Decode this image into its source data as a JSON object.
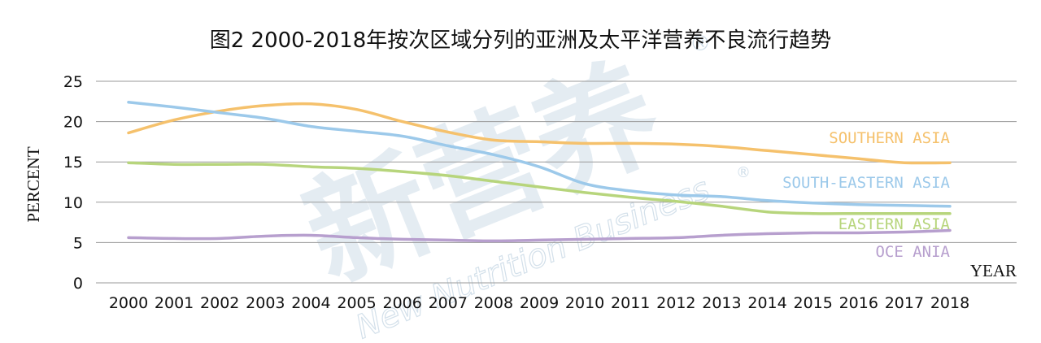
{
  "chart_data": {
    "type": "line",
    "title": "图2 2000-2018年按次区域分列的亚洲及太平洋营养不良流行趋势",
    "ylabel": "PERCENT",
    "xlabel": "YEAR",
    "ylim": [
      0,
      25
    ],
    "yticks": [
      0,
      5,
      10,
      15,
      20,
      25
    ],
    "grid": true,
    "categories": [
      "2000",
      "2001",
      "2002",
      "2003",
      "2004",
      "2005",
      "2006",
      "2007",
      "2008",
      "2009",
      "2010",
      "2011",
      "2012",
      "2013",
      "2014",
      "2015",
      "2016",
      "2017",
      "2018"
    ],
    "series": [
      {
        "name": "SOUTHERN ASIA",
        "color": "#f5c16c",
        "values": [
          18.6,
          20.2,
          21.3,
          22.0,
          22.2,
          21.5,
          20.0,
          18.7,
          17.7,
          17.5,
          17.3,
          17.3,
          17.2,
          16.9,
          16.4,
          15.9,
          15.4,
          14.9,
          14.9
        ]
      },
      {
        "name": "SOUTH-EASTERN ASIA",
        "color": "#9cc9ea",
        "values": [
          22.4,
          21.8,
          21.1,
          20.4,
          19.4,
          18.8,
          18.2,
          17.0,
          15.9,
          14.4,
          12.3,
          11.4,
          10.9,
          10.7,
          10.2,
          9.9,
          9.7,
          9.6,
          9.5
        ]
      },
      {
        "name": "EASTERN ASIA",
        "color": "#b7d57c",
        "values": [
          14.9,
          14.7,
          14.7,
          14.7,
          14.4,
          14.2,
          13.8,
          13.3,
          12.6,
          11.9,
          11.2,
          10.6,
          10.1,
          9.5,
          8.8,
          8.6,
          8.6,
          8.6,
          8.6
        ]
      },
      {
        "name": "OCE ANIA",
        "color": "#b79fce",
        "values": [
          5.6,
          5.5,
          5.5,
          5.8,
          5.9,
          5.6,
          5.4,
          5.3,
          5.2,
          5.3,
          5.4,
          5.5,
          5.6,
          5.9,
          6.1,
          6.2,
          6.2,
          6.3,
          6.5
        ]
      }
    ]
  },
  "watermark": {
    "main": "新营养",
    "sub": "New Nutrition Business",
    "mark": "®",
    "color": "#c5d6e4"
  }
}
